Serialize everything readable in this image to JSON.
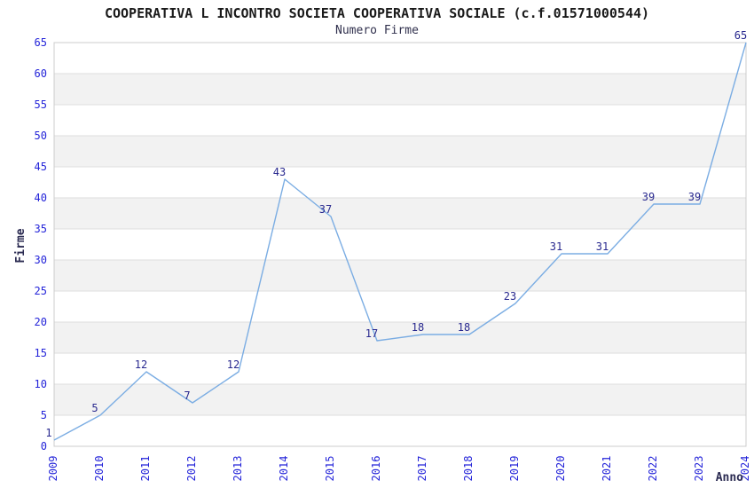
{
  "page": {
    "title": "COOPERATIVA L INCONTRO SOCIETA COOPERATIVA SOCIALE (c.f.01571000544)",
    "subtitle": "Numero Firme"
  },
  "colors": {
    "line": "#7bade3",
    "tick_label": "#2424d9",
    "point_label": "#29298f",
    "axis_title": "#2b2b52",
    "band": "#f2f2f2",
    "grid": "#dedede",
    "border": "#cccccc"
  },
  "chart_data": {
    "type": "line",
    "title": "COOPERATIVA L INCONTRO SOCIETA COOPERATIVA SOCIALE (c.f.01571000544)",
    "subtitle": "Numero Firme",
    "xlabel": "Anno",
    "ylabel": "Firme",
    "categories": [
      "2009",
      "2010",
      "2011",
      "2012",
      "2013",
      "2014",
      "2015",
      "2016",
      "2017",
      "2018",
      "2019",
      "2020",
      "2021",
      "2022",
      "2023",
      "2024"
    ],
    "values": [
      1,
      5,
      12,
      7,
      12,
      43,
      37,
      17,
      18,
      18,
      23,
      31,
      31,
      39,
      39,
      65
    ],
    "ylim": [
      0,
      65
    ],
    "ytick_step": 5,
    "grid": true,
    "bands": "alternating horizontal gray stripes every 5 units",
    "legend_position": "none",
    "point_labels_shown": true
  }
}
